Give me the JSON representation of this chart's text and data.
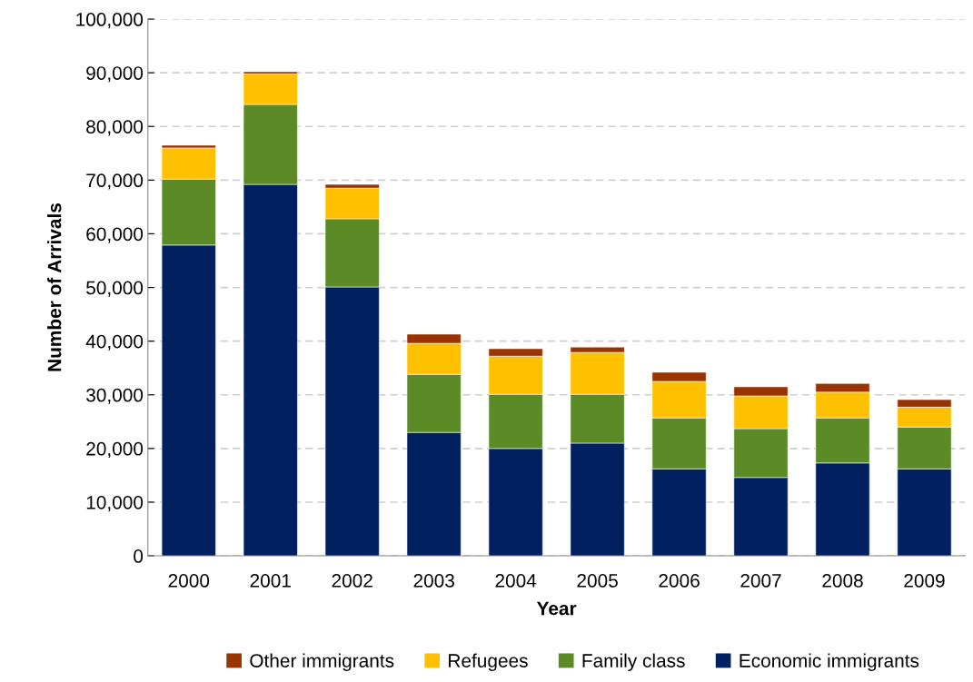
{
  "chart_data": {
    "type": "bar",
    "stacked": true,
    "xlabel": "Year",
    "ylabel": "Number of Arrivals",
    "categories": [
      "2000",
      "2001",
      "2002",
      "2003",
      "2004",
      "2005",
      "2006",
      "2007",
      "2008",
      "2009"
    ],
    "series": [
      {
        "name": "Economic immigrants",
        "color": "#002060",
        "values": [
          57900,
          69200,
          50100,
          23000,
          20000,
          21000,
          16200,
          14600,
          17300,
          16200
        ]
      },
      {
        "name": "Family class",
        "color": "#5b8a27",
        "values": [
          12300,
          14900,
          12700,
          10800,
          10100,
          9100,
          9500,
          9100,
          8400,
          7800
        ]
      },
      {
        "name": "Refugees",
        "color": "#ffc000",
        "values": [
          5800,
          5700,
          5700,
          5800,
          7100,
          7800,
          6800,
          6100,
          4800,
          3700
        ]
      },
      {
        "name": "Other immigrants",
        "color": "#993300",
        "values": [
          500,
          400,
          700,
          1700,
          1400,
          1000,
          1700,
          1700,
          1600,
          1400
        ]
      }
    ],
    "ylim": [
      0,
      100000
    ],
    "yticks": [
      0,
      {
        "value": 10000,
        "label": "10,000"
      },
      {
        "value": 20000,
        "label": "20,000"
      },
      {
        "value": 30000,
        "label": "30,000"
      },
      {
        "value": 40000,
        "label": "40,000"
      },
      {
        "value": 50000,
        "label": "50,000"
      },
      {
        "value": 60000,
        "label": "60,000"
      },
      {
        "value": 70000,
        "label": "70,000"
      },
      {
        "value": 80000,
        "label": "80,000"
      },
      {
        "value": 90000,
        "label": "90,000"
      },
      {
        "value": 100000,
        "label": "100,000"
      }
    ],
    "grid": "y",
    "legend": "bottom"
  }
}
